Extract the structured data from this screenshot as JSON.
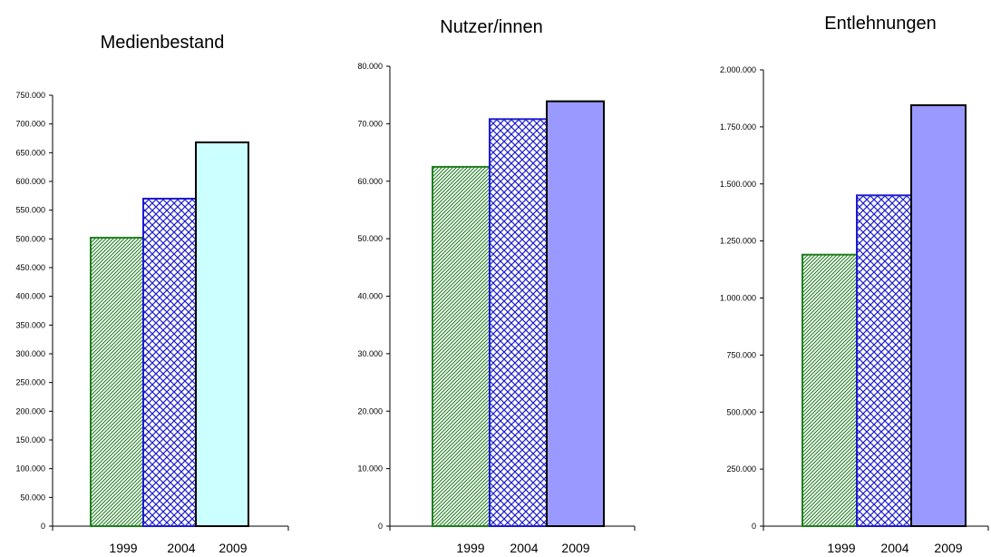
{
  "chart_data": [
    {
      "type": "bar",
      "title": "Medienbestand",
      "categories": [
        "1999",
        "2004",
        "2009"
      ],
      "values": [
        502000,
        570000,
        668000
      ],
      "ylim": [
        0,
        750000
      ],
      "ytick_labels": [
        "0",
        "50.000",
        "100.000",
        "150.000",
        "200.000",
        "250.000",
        "300.000",
        "350.000",
        "400.000",
        "450.000",
        "500.000",
        "550.000",
        "600.000",
        "650.000",
        "700.000",
        "750.000"
      ],
      "ytick_step": 50000,
      "bar_styles": [
        "green-diagonal-hatch",
        "blue-crosshatch",
        "light-cyan"
      ],
      "colors": [
        "#1f7f1f",
        "#1c1ccf",
        "#ccffff"
      ],
      "grid": false,
      "legend": "none"
    },
    {
      "type": "bar",
      "title": "Nutzer/innen",
      "categories": [
        "1999",
        "2004",
        "2009"
      ],
      "values": [
        62500,
        70800,
        73900
      ],
      "ylim": [
        0,
        80000
      ],
      "ytick_labels": [
        "0",
        "10.000",
        "20.000",
        "30.000",
        "40.000",
        "50.000",
        "60.000",
        "70.000",
        "80.000"
      ],
      "ytick_step": 10000,
      "bar_styles": [
        "green-diagonal-hatch",
        "blue-crosshatch",
        "periwinkle"
      ],
      "colors": [
        "#1f7f1f",
        "#1c1ccf",
        "#9999ff"
      ],
      "grid": false,
      "legend": "none"
    },
    {
      "type": "bar",
      "title": "Entlehnungen",
      "categories": [
        "1999",
        "2004",
        "2009"
      ],
      "values": [
        1190000,
        1450000,
        1845000
      ],
      "ylim": [
        0,
        2000000
      ],
      "ytick_labels": [
        "0",
        "250.000",
        "500.000",
        "750.000",
        "1.000.000",
        "1.250.000",
        "1.500.000",
        "1.750.000",
        "2.000.000"
      ],
      "ytick_step": 250000,
      "bar_styles": [
        "green-diagonal-hatch",
        "blue-crosshatch",
        "periwinkle"
      ],
      "colors": [
        "#1f7f1f",
        "#1c1ccf",
        "#9999ff"
      ],
      "grid": false,
      "legend": "none"
    }
  ]
}
